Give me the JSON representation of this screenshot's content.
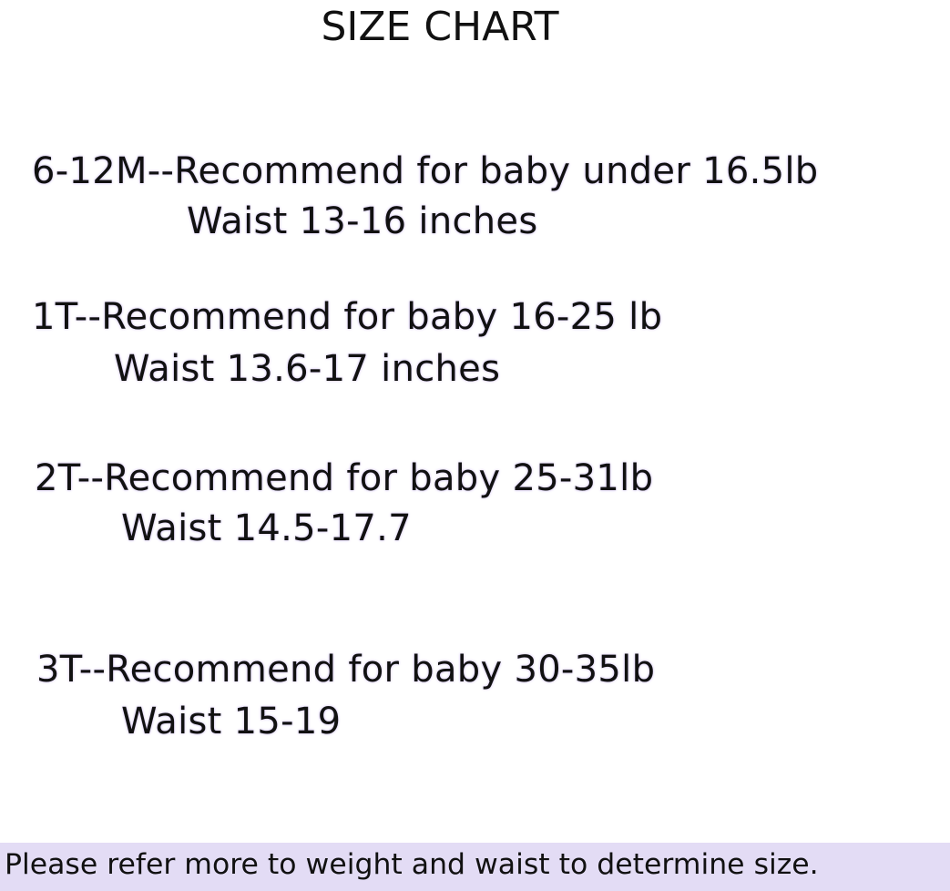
{
  "title": "SIZE CHART",
  "sizes": [
    {
      "line": "6-12M--Recommend for baby under 16.5lb",
      "waist": "Waist 13-16 inches"
    },
    {
      "line": "1T--Recommend for baby 16-25 lb",
      "waist": "Waist 13.6-17 inches"
    },
    {
      "line": "2T--Recommend for baby 25-31lb",
      "waist": "Waist 14.5-17.7"
    },
    {
      "line": "3T--Recommend for baby 30-35lb",
      "waist": "Waist 15-19"
    }
  ],
  "footer": "Please refer more to weight and waist to determine size.",
  "colors": {
    "footer_background": "#e3dcf5",
    "text_glow": "#d9ccf5",
    "text": "#111111"
  }
}
